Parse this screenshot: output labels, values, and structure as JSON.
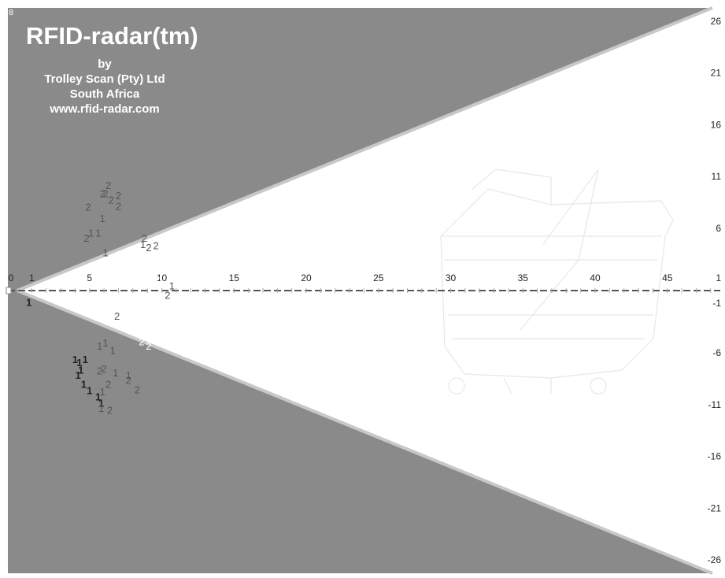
{
  "window": {
    "corner_mark": "8"
  },
  "brand": {
    "title": "RFID-radar(tm)",
    "by": "by",
    "company": "Trolley Scan (Pty) Ltd",
    "country": "South Africa",
    "website": "www.rfid-radar.com"
  },
  "colors": {
    "sector_outside": "#8a8a8a",
    "sector_inside": "#ffffff",
    "sector_edge": "#c8c8c8",
    "axis": "#555555",
    "tick_text": "#222222",
    "tag_dark": "#222222",
    "tag_mid": "#555555",
    "tag_light": "#ffffff"
  },
  "chart_data": {
    "type": "scatter",
    "title": "RFID-radar(tm)",
    "x_ticks": [
      "0",
      "1",
      "5",
      "10",
      "15",
      "20",
      "25",
      "30",
      "35",
      "40",
      "45"
    ],
    "y_ticks": [
      "26",
      "21",
      "16",
      "11",
      "6",
      "1",
      "-1",
      "-6",
      "-11",
      "-16",
      "-21",
      "-26"
    ],
    "xlim": [
      0,
      48
    ],
    "ylim": [
      -26.5,
      26.5
    ],
    "sector_edges": [
      {
        "x": [
          0,
          48
        ],
        "y": [
          0,
          26.5
        ]
      },
      {
        "x": [
          0,
          48
        ],
        "y": [
          0,
          -26.5
        ]
      }
    ],
    "tags": [
      {
        "label": "2",
        "x": 6.3,
        "y": 9.8,
        "tone": "mid"
      },
      {
        "label": "2",
        "x": 5.9,
        "y": 9.0,
        "tone": "mid"
      },
      {
        "label": "2",
        "x": 6.1,
        "y": 9.0,
        "tone": "mid"
      },
      {
        "label": "2",
        "x": 7.0,
        "y": 8.8,
        "tone": "mid"
      },
      {
        "label": "2",
        "x": 6.5,
        "y": 8.4,
        "tone": "mid"
      },
      {
        "label": "2",
        "x": 7.0,
        "y": 7.8,
        "tone": "mid"
      },
      {
        "label": "2",
        "x": 4.9,
        "y": 7.7,
        "tone": "mid"
      },
      {
        "label": "1",
        "x": 5.9,
        "y": 6.6,
        "tone": "mid"
      },
      {
        "label": "1",
        "x": 5.1,
        "y": 5.2,
        "tone": "mid"
      },
      {
        "label": "1",
        "x": 5.6,
        "y": 5.2,
        "tone": "mid"
      },
      {
        "label": "2",
        "x": 4.8,
        "y": 4.7,
        "tone": "mid"
      },
      {
        "label": "2",
        "x": 8.8,
        "y": 4.7,
        "tone": "mid"
      },
      {
        "label": "1",
        "x": 8.7,
        "y": 4.1,
        "tone": "mid"
      },
      {
        "label": "2",
        "x": 9.1,
        "y": 3.8,
        "tone": "mid"
      },
      {
        "label": "2",
        "x": 9.6,
        "y": 4.0,
        "tone": "mid"
      },
      {
        "label": "1",
        "x": 6.1,
        "y": 3.3,
        "tone": "mid"
      },
      {
        "label": "1",
        "x": 9.9,
        "y": 0.6,
        "tone": "light"
      },
      {
        "label": "1",
        "x": 10.7,
        "y": 0.1,
        "tone": "mid"
      },
      {
        "label": "2",
        "x": 10.4,
        "y": -0.8,
        "tone": "mid"
      },
      {
        "label": "1",
        "x": 0.8,
        "y": -1.5,
        "tone": "dark"
      },
      {
        "label": "2",
        "x": 6.9,
        "y": -2.8,
        "tone": "mid"
      },
      {
        "label": "2",
        "x": 8.6,
        "y": -5.3,
        "tone": "light"
      },
      {
        "label": "2",
        "x": 9.1,
        "y": -5.7,
        "tone": "light"
      },
      {
        "label": "1",
        "x": 5.7,
        "y": -5.7,
        "tone": "mid"
      },
      {
        "label": "1",
        "x": 6.1,
        "y": -5.4,
        "tone": "mid"
      },
      {
        "label": "1",
        "x": 6.6,
        "y": -6.1,
        "tone": "mid"
      },
      {
        "label": "1",
        "x": 4.0,
        "y": -7.0,
        "tone": "dark"
      },
      {
        "label": "1",
        "x": 4.3,
        "y": -7.3,
        "tone": "dark"
      },
      {
        "label": "1",
        "x": 4.7,
        "y": -7.0,
        "tone": "dark"
      },
      {
        "label": "1",
        "x": 4.4,
        "y": -8.0,
        "tone": "dark"
      },
      {
        "label": "1",
        "x": 4.2,
        "y": -8.5,
        "tone": "dark"
      },
      {
        "label": "1",
        "x": 4.6,
        "y": -9.4,
        "tone": "dark"
      },
      {
        "label": "1",
        "x": 5.0,
        "y": -10.0,
        "tone": "dark"
      },
      {
        "label": "1",
        "x": 5.6,
        "y": -10.6,
        "tone": "dark"
      },
      {
        "label": "1",
        "x": 5.8,
        "y": -11.2,
        "tone": "dark"
      },
      {
        "label": "2",
        "x": 5.7,
        "y": -8.1,
        "tone": "mid"
      },
      {
        "label": "2",
        "x": 6.0,
        "y": -7.9,
        "tone": "mid"
      },
      {
        "label": "1",
        "x": 6.8,
        "y": -8.3,
        "tone": "mid"
      },
      {
        "label": "2",
        "x": 6.3,
        "y": -9.4,
        "tone": "mid"
      },
      {
        "label": "1",
        "x": 7.7,
        "y": -8.5,
        "tone": "mid"
      },
      {
        "label": "2",
        "x": 7.7,
        "y": -9.0,
        "tone": "mid"
      },
      {
        "label": "2",
        "x": 8.3,
        "y": -9.9,
        "tone": "mid"
      },
      {
        "label": "1",
        "x": 5.9,
        "y": -10.1,
        "tone": "mid"
      },
      {
        "label": "1",
        "x": 5.8,
        "y": -11.7,
        "tone": "mid"
      },
      {
        "label": "2",
        "x": 6.4,
        "y": -11.9,
        "tone": "mid"
      }
    ]
  }
}
